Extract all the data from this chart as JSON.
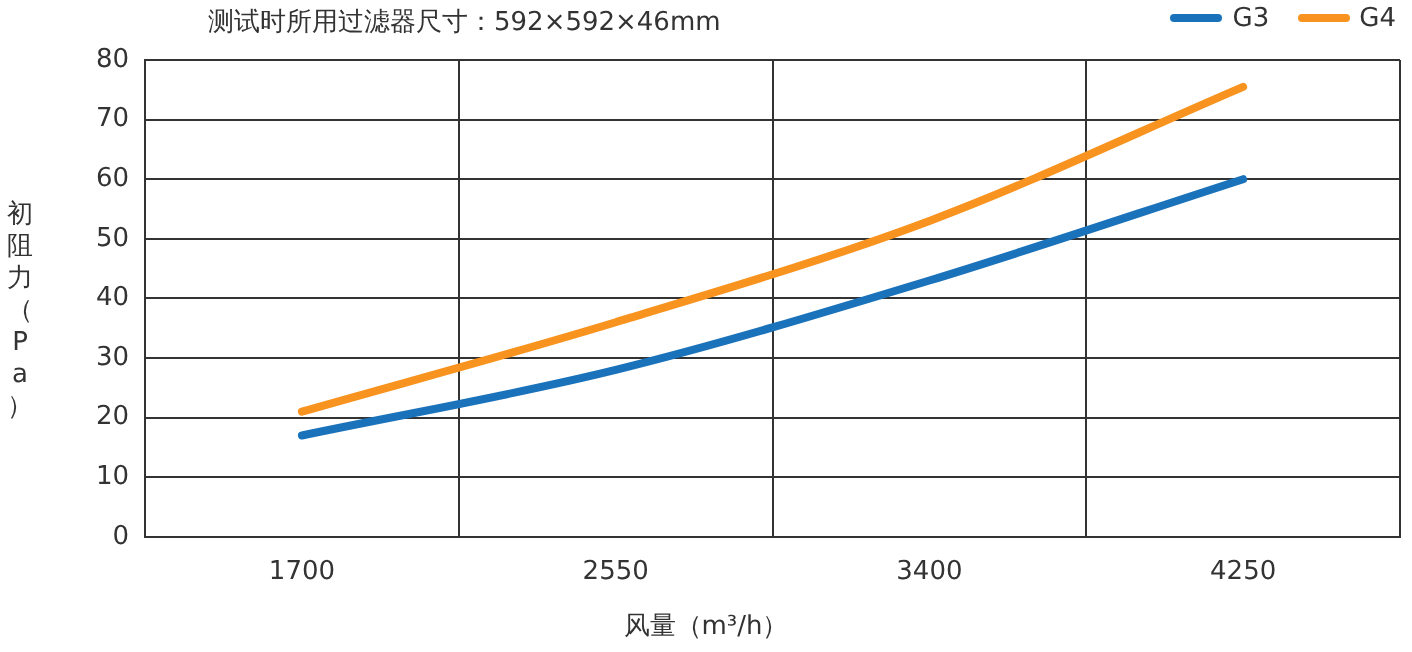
{
  "chart_data": {
    "type": "line",
    "title": "测试时所用过滤器尺寸：592×592×46mm",
    "xlabel": "风量（m³/h）",
    "ylabel": "初阻力（Pa）",
    "categories": [
      "1700",
      "2550",
      "3400",
      "4250"
    ],
    "series": [
      {
        "name": "G3",
        "color": "#1a72bb",
        "values": [
          17,
          28,
          43,
          60
        ]
      },
      {
        "name": "G4",
        "color": "#f7931e",
        "values": [
          21,
          36,
          53,
          75.5
        ]
      }
    ],
    "ylim": [
      0,
      80
    ],
    "yticks": [
      0,
      10,
      20,
      30,
      40,
      50,
      60,
      70,
      80
    ],
    "grid": true,
    "legend": "top right",
    "marker": "none",
    "line_style": "solid"
  }
}
